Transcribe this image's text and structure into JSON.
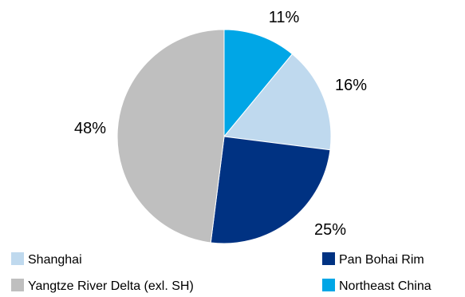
{
  "chart_data": {
    "type": "pie",
    "title": "",
    "slices": [
      {
        "name": "Northeast China",
        "value": 11,
        "label": "11%",
        "color": "#00a6e6"
      },
      {
        "name": "Shanghai",
        "value": 16,
        "label": "16%",
        "color": "#bfd9ee"
      },
      {
        "name": "Pan Bohai Rim",
        "value": 25,
        "label": "25%",
        "color": "#003282"
      },
      {
        "name": "Yangtze River Delta (exl. SH)",
        "value": 48,
        "label": "48%",
        "color": "#bfbfbf"
      }
    ],
    "start_angle_deg": 0,
    "direction": "clockwise",
    "legend": {
      "placement": "bottom",
      "order": [
        "Shanghai",
        "Pan Bohai Rim",
        "Yangtze River Delta (exl. SH)",
        "Northeast China"
      ]
    }
  }
}
